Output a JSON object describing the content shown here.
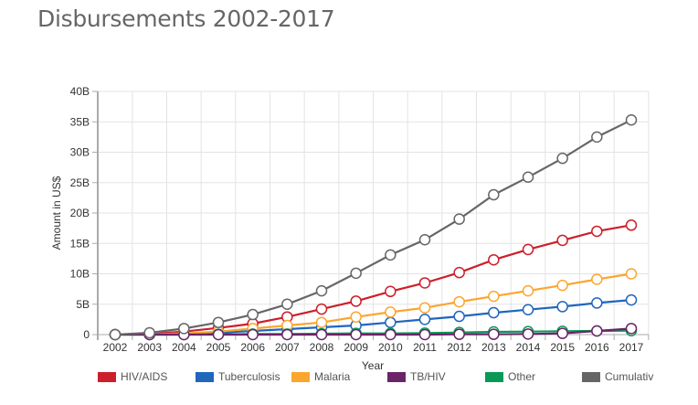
{
  "title": "Disbursements 2002-2017",
  "chart_data": {
    "type": "line",
    "title": "Disbursements 2002-2017",
    "xlabel": "Year",
    "ylabel": "Amount in US$",
    "ylim": [
      0,
      40
    ],
    "y_unit": "B",
    "y_ticks": [
      "0",
      "5B",
      "10B",
      "15B",
      "20B",
      "25B",
      "30B",
      "35B",
      "40B"
    ],
    "y_tick_values": [
      0,
      5,
      10,
      15,
      20,
      25,
      30,
      35,
      40
    ],
    "categories": [
      "2002",
      "2003",
      "2004",
      "2005",
      "2006",
      "2007",
      "2008",
      "2009",
      "2010",
      "2011",
      "2012",
      "2013",
      "2014",
      "2015",
      "2016",
      "2017"
    ],
    "grid": true,
    "legend_position": "bottom",
    "series": [
      {
        "name": "HIV/AIDS",
        "color": "#cc1f2b",
        "values": [
          0,
          0.1,
          0.5,
          1.1,
          1.8,
          2.9,
          4.2,
          5.5,
          7.1,
          8.5,
          10.2,
          12.3,
          14.0,
          15.5,
          17.0,
          18.0
        ]
      },
      {
        "name": "Tuberculosis",
        "color": "#1f66bd",
        "values": [
          0,
          0.05,
          0.15,
          0.3,
          0.6,
          0.9,
          1.2,
          1.5,
          2.0,
          2.5,
          3.0,
          3.6,
          4.1,
          4.6,
          5.2,
          5.7
        ]
      },
      {
        "name": "Malaria",
        "color": "#fba62e",
        "values": [
          0,
          0.05,
          0.2,
          0.5,
          1.0,
          1.5,
          2.0,
          2.9,
          3.7,
          4.4,
          5.4,
          6.3,
          7.2,
          8.1,
          9.1,
          10.0
        ]
      },
      {
        "name": "Other",
        "color": "#0a9957",
        "values": [
          0,
          0,
          0,
          0.05,
          0.1,
          0.1,
          0.15,
          0.2,
          0.2,
          0.25,
          0.35,
          0.45,
          0.5,
          0.55,
          0.6,
          0.65
        ]
      },
      {
        "name": "TB/HIV",
        "color": "#6b2467",
        "values": [
          0,
          0,
          0,
          0,
          0,
          0,
          0,
          0,
          0,
          0,
          0.05,
          0.05,
          0.1,
          0.2,
          0.6,
          1.0
        ]
      },
      {
        "name": "Cumulative",
        "color": "#666666",
        "values": [
          0,
          0.3,
          1.0,
          2.0,
          3.3,
          5.0,
          7.2,
          10.1,
          13.1,
          15.6,
          19.0,
          23.0,
          25.9,
          29.0,
          32.5,
          35.3
        ]
      }
    ],
    "legend": [
      "HIV/AIDS",
      "Tuberculosis",
      "Malaria",
      "TB/HIV",
      "Other",
      "Cumulativ"
    ]
  }
}
